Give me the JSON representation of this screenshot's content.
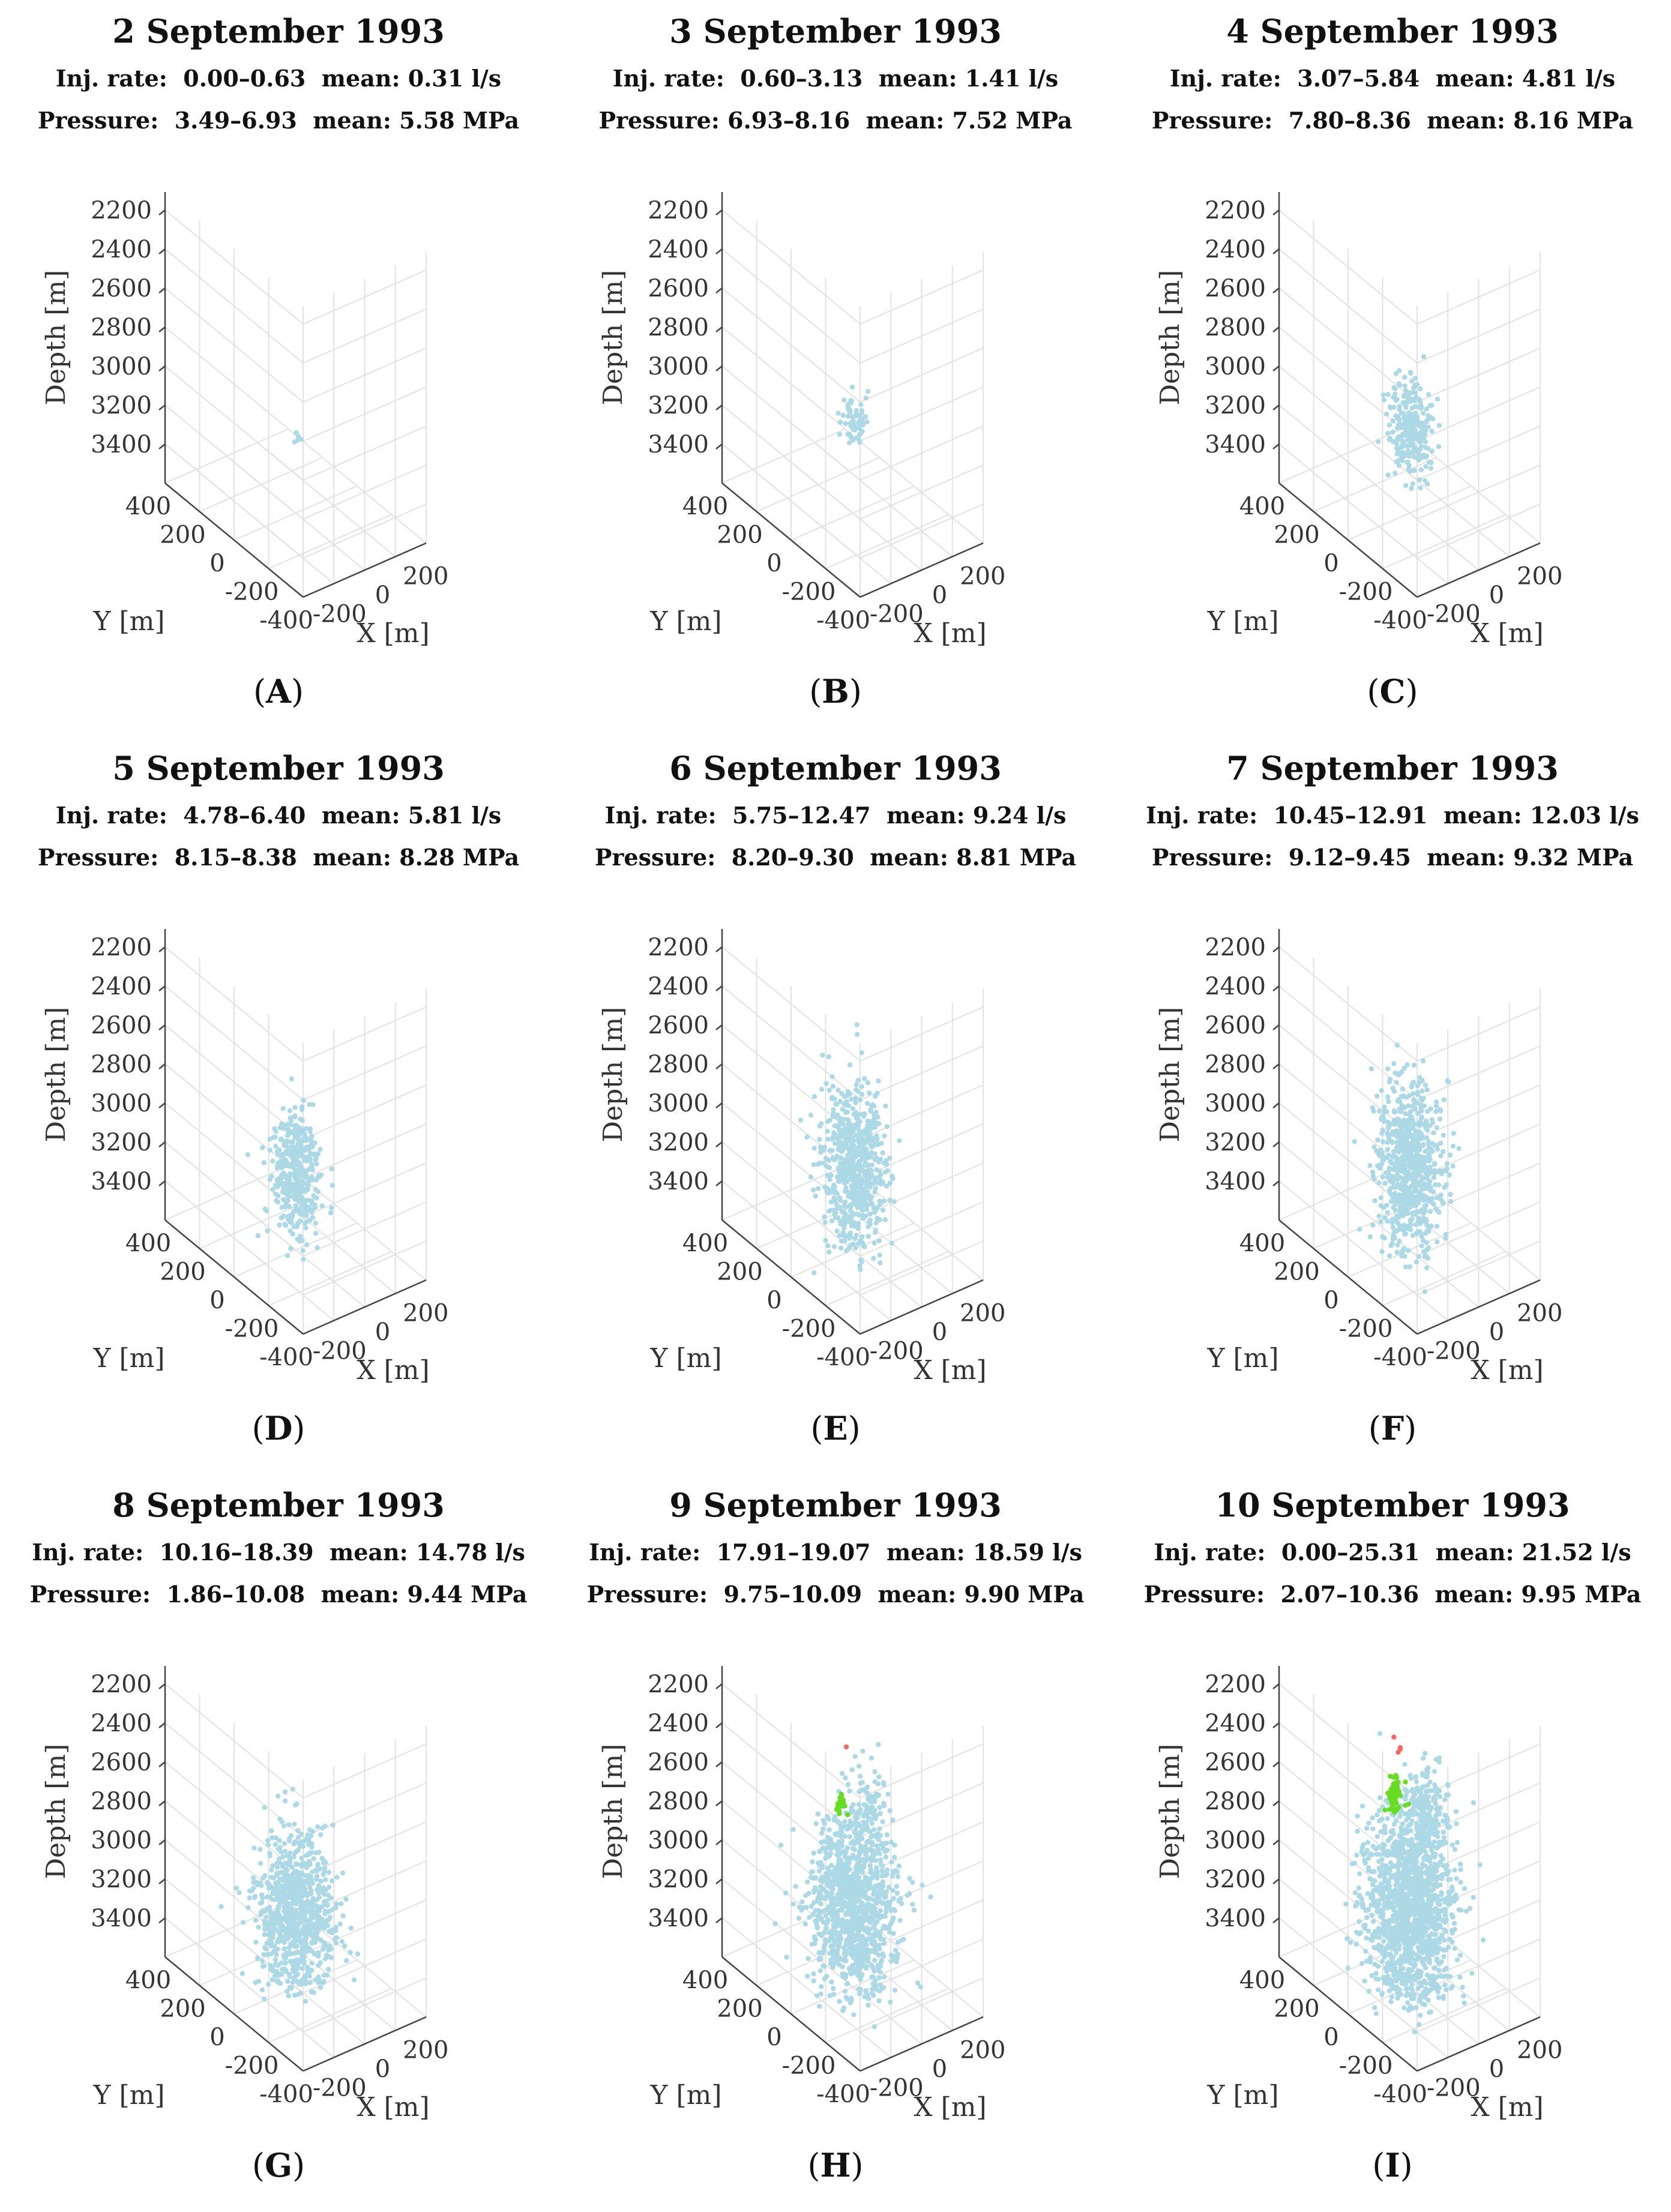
{
  "chart_data": [
    {
      "panel": "A",
      "type": "scatter3d",
      "title": "2 September 1993",
      "inj_rate": "Inj. rate:  0.00–0.63  mean: 0.31 l/s",
      "pressure": "Pressure:  3.49–6.93  mean: 5.58 MPa",
      "xlabel": "X [m]",
      "ylabel": "Y [m]",
      "zlabel": "Depth [m]",
      "xticks": [
        "-200",
        "0",
        "200"
      ],
      "yticks": [
        "400",
        "200",
        "0",
        "-200",
        "-400"
      ],
      "zticks": [
        "2200",
        "2400",
        "2600",
        "2800",
        "3000",
        "3200",
        "3400"
      ],
      "zlim": [
        2100,
        3500
      ],
      "grid": true,
      "series": [
        {
          "color": "#add8e6",
          "count": 5,
          "depth_center": 3170,
          "depth_spread": 12,
          "x_center": 30,
          "y_center": 20,
          "lateral_spread": 10
        }
      ]
    },
    {
      "panel": "B",
      "type": "scatter3d",
      "title": "3 September 1993",
      "inj_rate": "Inj. rate:  0.60–3.13  mean: 1.41 l/s",
      "pressure": "Pressure: 6.93–8.16  mean: 7.52 MPa",
      "xlabel": "X [m]",
      "ylabel": "Y [m]",
      "zlabel": "Depth [m]",
      "xticks": [
        "-200",
        "0",
        "200"
      ],
      "yticks": [
        "400",
        "200",
        "0",
        "-200",
        "-400"
      ],
      "zticks": [
        "2200",
        "2400",
        "2600",
        "2800",
        "3000",
        "3200",
        "3400"
      ],
      "zlim": [
        2100,
        3500
      ],
      "grid": true,
      "series": [
        {
          "color": "#add8e6",
          "count": 60,
          "depth_center": 3060,
          "depth_spread": 55,
          "x_center": 20,
          "y_center": 10,
          "lateral_spread": 28
        }
      ]
    },
    {
      "panel": "C",
      "type": "scatter3d",
      "title": "4 September 1993",
      "inj_rate": "Inj. rate:  3.07–5.84  mean: 4.81 l/s",
      "pressure": "Pressure:  7.80–8.36  mean: 8.16 MPa",
      "xlabel": "X [m]",
      "ylabel": "Y [m]",
      "zlabel": "Depth [m]",
      "xticks": [
        "-200",
        "0",
        "200"
      ],
      "yticks": [
        "400",
        "200",
        "0",
        "-200",
        "-400"
      ],
      "zticks": [
        "2200",
        "2400",
        "2600",
        "2800",
        "3000",
        "3200",
        "3400"
      ],
      "zlim": [
        2100,
        3500
      ],
      "grid": true,
      "series": [
        {
          "color": "#add8e6",
          "count": 260,
          "depth_center": 3100,
          "depth_spread": 120,
          "x_center": 10,
          "y_center": 0,
          "lateral_spread": 40
        }
      ]
    },
    {
      "panel": "D",
      "type": "scatter3d",
      "title": "5 September 1993",
      "inj_rate": "Inj. rate:  4.78–6.40  mean: 5.81 l/s",
      "pressure": "Pressure:  8.15–8.38  mean: 8.28 MPa",
      "xlabel": "X [m]",
      "ylabel": "Y [m]",
      "zlabel": "Depth [m]",
      "xticks": [
        "-200",
        "0",
        "200"
      ],
      "yticks": [
        "400",
        "200",
        "0",
        "-200",
        "-400"
      ],
      "zticks": [
        "2200",
        "2400",
        "2600",
        "2800",
        "3000",
        "3200",
        "3400"
      ],
      "zlim": [
        2100,
        3500
      ],
      "grid": true,
      "series": [
        {
          "color": "#add8e6",
          "count": 420,
          "depth_center": 3130,
          "depth_spread": 150,
          "x_center": 0,
          "y_center": 0,
          "lateral_spread": 50
        }
      ]
    },
    {
      "panel": "E",
      "type": "scatter3d",
      "title": "6 September 1993",
      "inj_rate": "Inj. rate:  5.75–12.47  mean: 9.24 l/s",
      "pressure": "Pressure:  8.20–9.30  mean: 8.81 MPa",
      "xlabel": "X [m]",
      "ylabel": "Y [m]",
      "zlabel": "Depth [m]",
      "xticks": [
        "-200",
        "0",
        "200"
      ],
      "yticks": [
        "400",
        "200",
        "0",
        "-200",
        "-400"
      ],
      "zticks": [
        "2200",
        "2400",
        "2600",
        "2800",
        "3000",
        "3200",
        "3400"
      ],
      "zlim": [
        2100,
        3500
      ],
      "grid": true,
      "series": [
        {
          "color": "#add8e6",
          "count": 650,
          "depth_center": 3100,
          "depth_spread": 190,
          "x_center": 0,
          "y_center": 0,
          "lateral_spread": 60
        }
      ]
    },
    {
      "panel": "F",
      "type": "scatter3d",
      "title": "7 September 1993",
      "inj_rate": "Inj. rate:  10.45–12.91  mean: 12.03 l/s",
      "pressure": "Pressure:  9.12–9.45  mean: 9.32 MPa",
      "xlabel": "X [m]",
      "ylabel": "Y [m]",
      "zlabel": "Depth [m]",
      "xticks": [
        "-200",
        "0",
        "200"
      ],
      "yticks": [
        "400",
        "200",
        "0",
        "-200",
        "-400"
      ],
      "zticks": [
        "2200",
        "2400",
        "2600",
        "2800",
        "3000",
        "3200",
        "3400"
      ],
      "zlim": [
        2100,
        3500
      ],
      "grid": true,
      "series": [
        {
          "color": "#add8e6",
          "count": 750,
          "depth_center": 3100,
          "depth_spread": 200,
          "x_center": 0,
          "y_center": 0,
          "lateral_spread": 62
        }
      ]
    },
    {
      "panel": "G",
      "type": "scatter3d",
      "title": "8 September 1993",
      "inj_rate": "Inj. rate:  10.16–18.39  mean: 14.78 l/s",
      "pressure": "Pressure:  1.86–10.08  mean: 9.44 MPa",
      "xlabel": "X [m]",
      "ylabel": "Y [m]",
      "zlabel": "Depth [m]",
      "xticks": [
        "-200",
        "0",
        "200"
      ],
      "yticks": [
        "400",
        "200",
        "0",
        "-200",
        "-400"
      ],
      "zticks": [
        "2200",
        "2400",
        "2600",
        "2800",
        "3000",
        "3200",
        "3400"
      ],
      "zlim": [
        2100,
        3500
      ],
      "grid": true,
      "series": [
        {
          "color": "#add8e6",
          "count": 850,
          "depth_center": 3150,
          "depth_spread": 190,
          "x_center": 0,
          "y_center": 0,
          "lateral_spread": 70
        }
      ]
    },
    {
      "panel": "H",
      "type": "scatter3d",
      "title": "9 September 1993",
      "inj_rate": "Inj. rate:  17.91–19.07  mean: 18.59 l/s",
      "pressure": "Pressure:  9.75–10.09  mean: 9.90 MPa",
      "xlabel": "X [m]",
      "ylabel": "Y [m]",
      "zlabel": "Depth [m]",
      "xticks": [
        "-200",
        "0",
        "200"
      ],
      "yticks": [
        "400",
        "200",
        "0",
        "-200",
        "-400"
      ],
      "zticks": [
        "2200",
        "2400",
        "2600",
        "2800",
        "3000",
        "3200",
        "3400"
      ],
      "zlim": [
        2100,
        3500
      ],
      "grid": true,
      "series": [
        {
          "color": "#add8e6",
          "count": 1100,
          "depth_center": 3120,
          "depth_spread": 210,
          "x_center": 0,
          "y_center": 0,
          "lateral_spread": 80
        },
        {
          "color": "#add8e6",
          "count": 90,
          "depth_center": 2900,
          "depth_spread": 110,
          "x_center": 240,
          "y_center": 180,
          "lateral_spread": 30
        },
        {
          "color": "#66dd22",
          "count": 18,
          "depth_center": 2650,
          "depth_spread": 35,
          "x_center": -10,
          "y_center": 60,
          "lateral_spread": 10
        },
        {
          "color": "#ff6666",
          "count": 1,
          "depth_center": 2560,
          "depth_spread": 5,
          "x_center": 150,
          "y_center": 210,
          "lateral_spread": 4
        }
      ]
    },
    {
      "panel": "I",
      "type": "scatter3d",
      "title": "10 September 1993",
      "inj_rate": "Inj. rate:  0.00–25.31  mean: 21.52 l/s",
      "pressure": "Pressure:  2.07–10.36  mean: 9.95 MPa",
      "xlabel": "X [m]",
      "ylabel": "Y [m]",
      "zlabel": "Depth [m]",
      "xticks": [
        "-200",
        "0",
        "200"
      ],
      "yticks": [
        "400",
        "200",
        "0",
        "-200",
        "-400"
      ],
      "zticks": [
        "2200",
        "2400",
        "2600",
        "2800",
        "3000",
        "3200",
        "3400"
      ],
      "zlim": [
        2100,
        3500
      ],
      "grid": true,
      "series": [
        {
          "color": "#add8e6",
          "count": 1400,
          "depth_center": 3120,
          "depth_spread": 220,
          "x_center": 0,
          "y_center": 0,
          "lateral_spread": 85
        },
        {
          "color": "#add8e6",
          "count": 180,
          "depth_center": 2900,
          "depth_spread": 130,
          "x_center": 250,
          "y_center": 200,
          "lateral_spread": 35
        },
        {
          "color": "#66dd22",
          "count": 55,
          "depth_center": 2600,
          "depth_spread": 45,
          "x_center": -20,
          "y_center": 60,
          "lateral_spread": 14
        },
        {
          "color": "#ff6666",
          "count": 4,
          "depth_center": 2560,
          "depth_spread": 20,
          "x_center": 140,
          "y_center": 220,
          "lateral_spread": 10
        }
      ]
    }
  ]
}
